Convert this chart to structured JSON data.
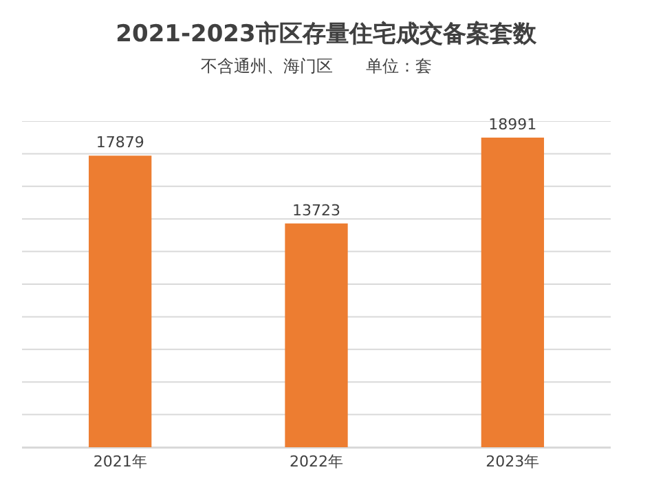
{
  "chart_data": {
    "type": "bar",
    "title": "2021-2023市区存量住宅成交备案套数",
    "subtitle": "不含通州、海门区　　单位：套",
    "categories": [
      "2021年",
      "2022年",
      "2023年"
    ],
    "values": [
      17879,
      13723,
      18991
    ],
    "color": "#ed7d31",
    "ylim": [
      0,
      20000
    ],
    "yticks": [
      {
        "value": 0,
        "label": null
      },
      {
        "value": 2000,
        "label": null
      },
      {
        "value": 4000,
        "label": null
      },
      {
        "value": 6000,
        "label": null
      },
      {
        "value": 8000,
        "label": null
      },
      {
        "value": 10000,
        "label": null
      },
      {
        "value": 12000,
        "label": null
      },
      {
        "value": 14000,
        "label": null
      },
      {
        "value": 16000,
        "label": null
      },
      {
        "value": 18000,
        "label": null
      },
      {
        "value": 20000,
        "label": null
      }
    ],
    "grid": "y",
    "data_labels": true,
    "tick_labels": "x",
    "legend": false
  }
}
